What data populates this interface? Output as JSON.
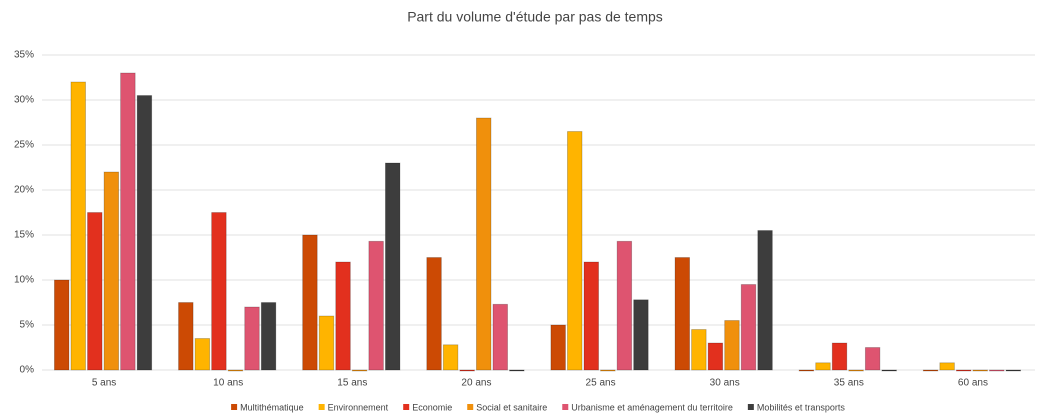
{
  "chart_data": {
    "type": "bar",
    "title": "Part du volume d'étude par pas de temps",
    "categories": [
      "5 ans",
      "10 ans",
      "15 ans",
      "20 ans",
      "25 ans",
      "30 ans",
      "35 ans",
      "60 ans"
    ],
    "series": [
      {
        "name": "Multithématique",
        "color": "#cc4a04",
        "values": [
          10,
          7.5,
          15,
          12.5,
          5,
          12.5,
          0,
          0
        ]
      },
      {
        "name": "Environnement",
        "color": "#ffb400",
        "values": [
          32,
          3.5,
          6,
          2.8,
          26.5,
          4.5,
          0.8,
          0.8
        ]
      },
      {
        "name": "Economie",
        "color": "#e2301e",
        "values": [
          17.5,
          17.5,
          12,
          0,
          12,
          3,
          3,
          0
        ]
      },
      {
        "name": "Social et sanitaire",
        "color": "#f0900c",
        "values": [
          22,
          0,
          0,
          28,
          0,
          5.5,
          0,
          0
        ]
      },
      {
        "name": "Urbanisme et aménagement du territoire",
        "color": "#de5470",
        "values": [
          33,
          7,
          14.3,
          7.3,
          14.3,
          9.5,
          2.5,
          0
        ]
      },
      {
        "name": "Mobilités et transports",
        "color": "#3d3d3d",
        "values": [
          30.5,
          7.5,
          23,
          0,
          7.8,
          15.5,
          0,
          0
        ]
      }
    ],
    "ylim": [
      0,
      35
    ],
    "yticks": [
      {
        "value": 0,
        "label": "0%"
      },
      {
        "value": 5,
        "label": "5%"
      },
      {
        "value": 10,
        "label": "10%"
      },
      {
        "value": 15,
        "label": "15%"
      },
      {
        "value": 20,
        "label": "20%"
      },
      {
        "value": 25,
        "label": "25%"
      },
      {
        "value": 30,
        "label": "30%"
      },
      {
        "value": 35,
        "label": "35%"
      }
    ],
    "grid": true,
    "legend": "bottom"
  }
}
